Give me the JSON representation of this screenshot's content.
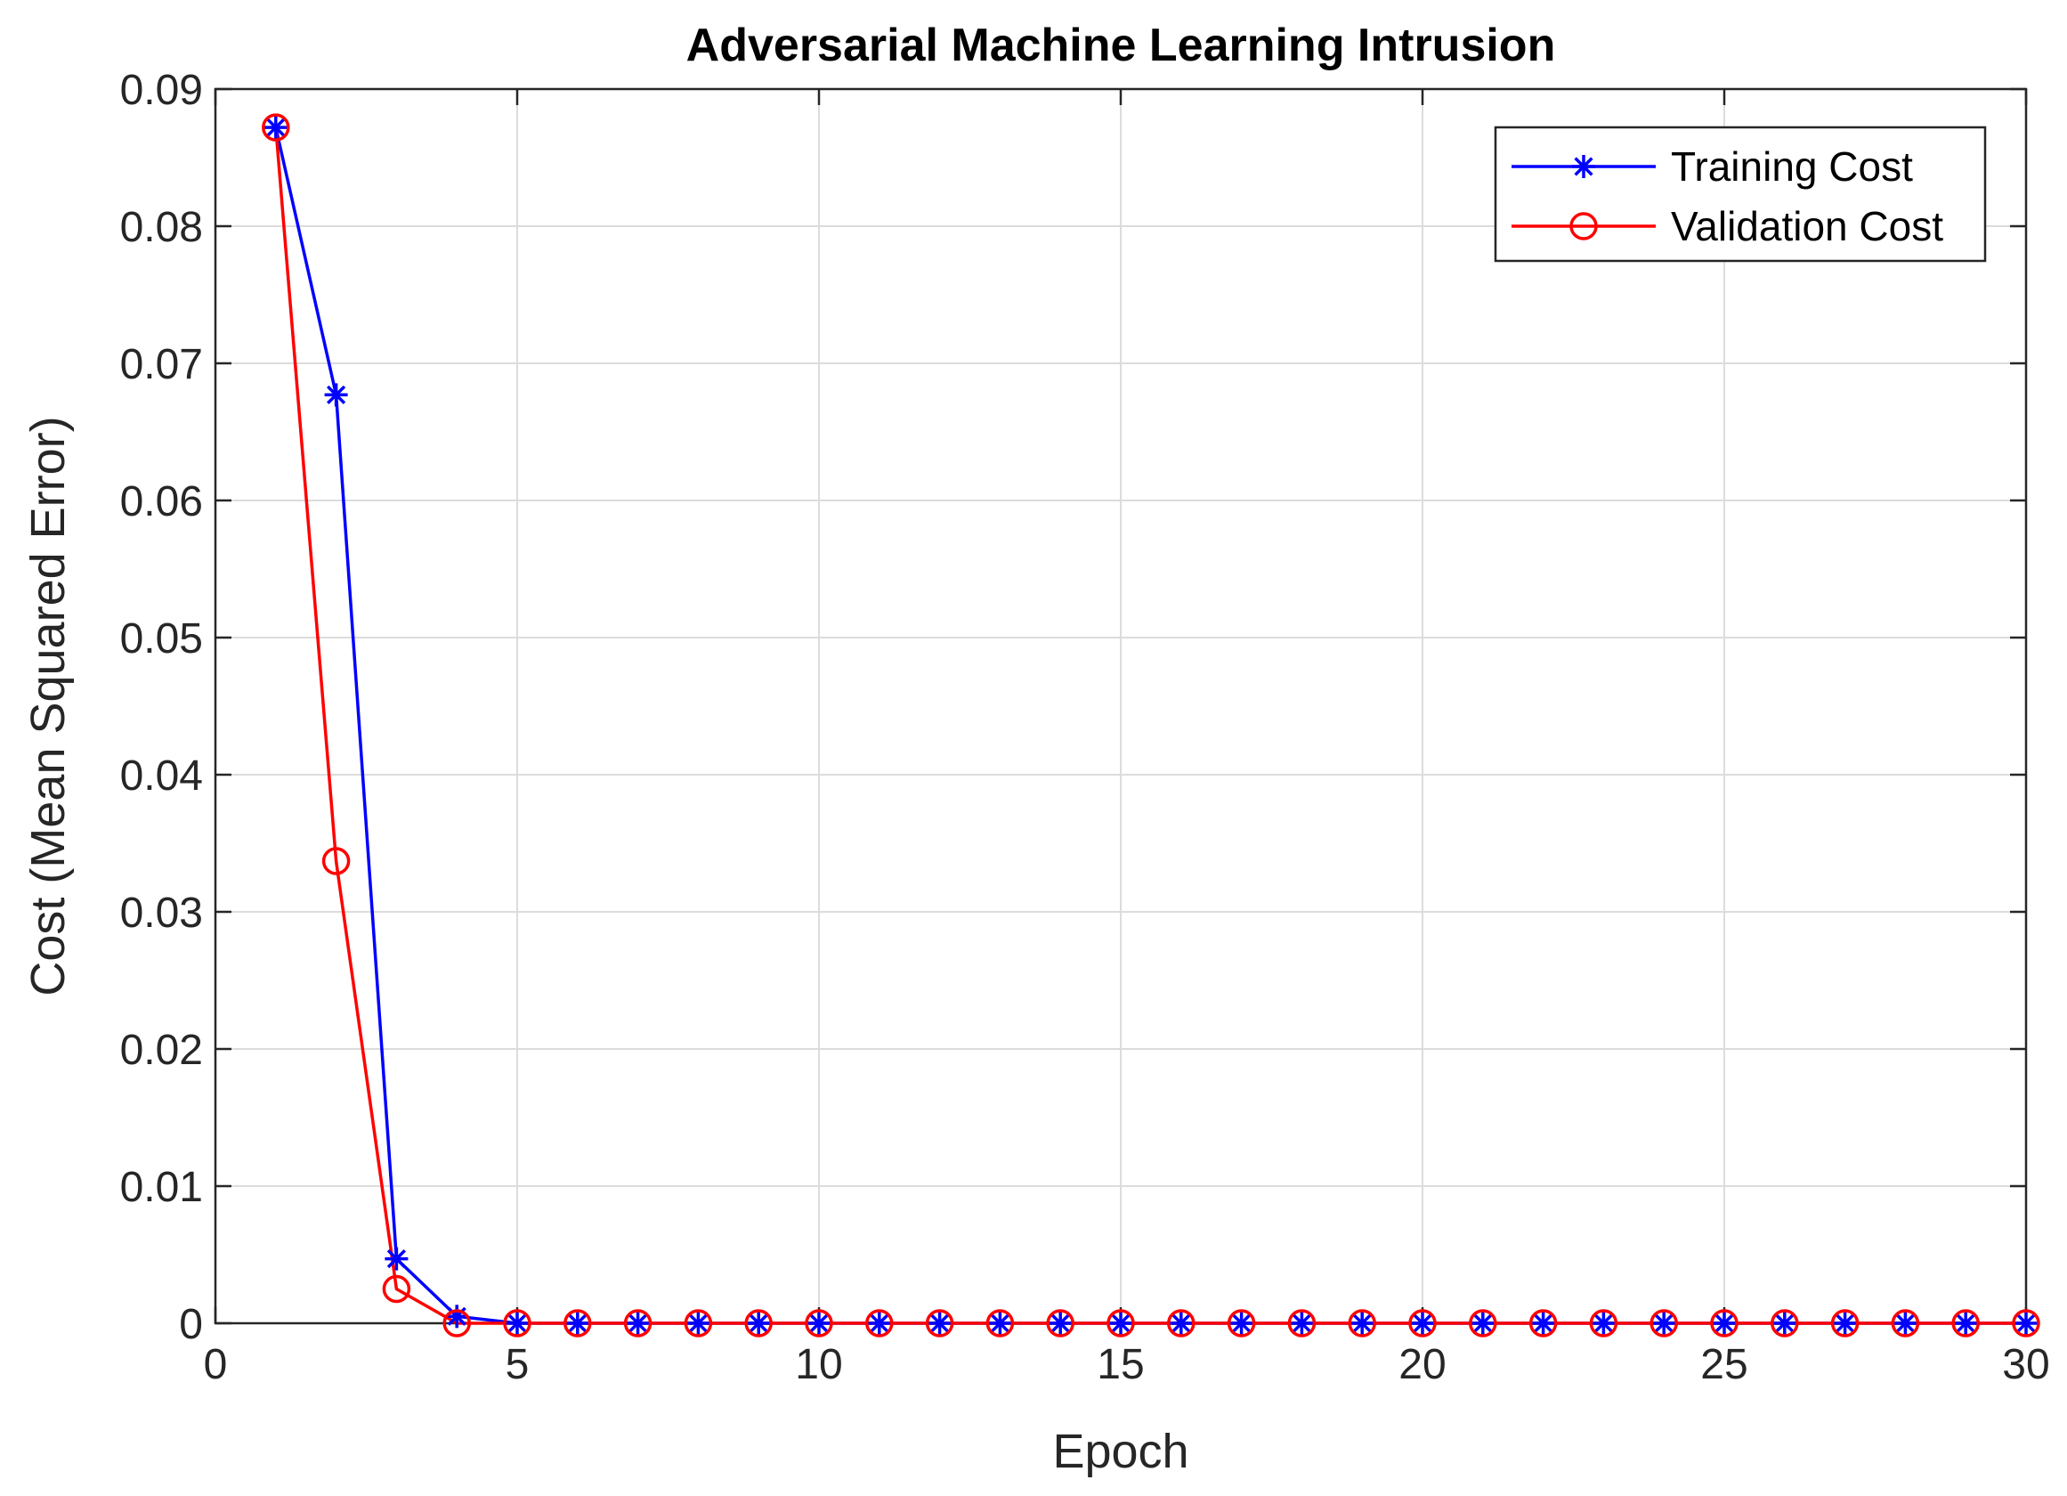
{
  "chart_data": {
    "type": "line",
    "title": "Adversarial Machine Learning Intrusion",
    "xlabel": "Epoch",
    "ylabel": "Cost (Mean Squared Error)",
    "xlim": [
      0,
      30
    ],
    "ylim": [
      0,
      0.09
    ],
    "xticks": [
      0,
      5,
      10,
      15,
      20,
      25,
      30
    ],
    "xtick_labels": [
      "0",
      "5",
      "10",
      "15",
      "20",
      "25",
      "30"
    ],
    "yticks": [
      0,
      0.01,
      0.02,
      0.03,
      0.04,
      0.05,
      0.06,
      0.07,
      0.08,
      0.09
    ],
    "ytick_labels": [
      "0",
      "0.01",
      "0.02",
      "0.03",
      "0.04",
      "0.05",
      "0.06",
      "0.07",
      "0.08",
      "0.09"
    ],
    "grid": true,
    "legend_position": "top-right",
    "x": [
      1,
      2,
      3,
      4,
      5,
      6,
      7,
      8,
      9,
      10,
      11,
      12,
      13,
      14,
      15,
      16,
      17,
      18,
      19,
      20,
      21,
      22,
      23,
      24,
      25,
      26,
      27,
      28,
      29,
      30
    ],
    "series": [
      {
        "name": "Training Cost",
        "color": "#0000ff",
        "marker": "asterisk",
        "values": [
          0.0872,
          0.0677,
          0.0047,
          0.0005,
          0.0,
          0.0,
          0.0,
          0.0,
          0.0,
          0.0,
          0.0,
          0.0,
          0.0,
          0.0,
          0.0,
          0.0,
          0.0,
          0.0,
          0.0,
          0.0,
          0.0,
          0.0,
          0.0,
          0.0,
          0.0,
          0.0,
          0.0,
          0.0,
          0.0,
          0.0
        ]
      },
      {
        "name": "Validation Cost",
        "color": "#ff0000",
        "marker": "circle",
        "values": [
          0.0872,
          0.0337,
          0.0025,
          0.0,
          0.0,
          0.0,
          0.0,
          0.0,
          0.0,
          0.0,
          0.0,
          0.0,
          0.0,
          0.0,
          0.0,
          0.0,
          0.0,
          0.0,
          0.0,
          0.0,
          0.0,
          0.0,
          0.0,
          0.0,
          0.0,
          0.0,
          0.0,
          0.0,
          0.0,
          0.0
        ]
      }
    ]
  }
}
